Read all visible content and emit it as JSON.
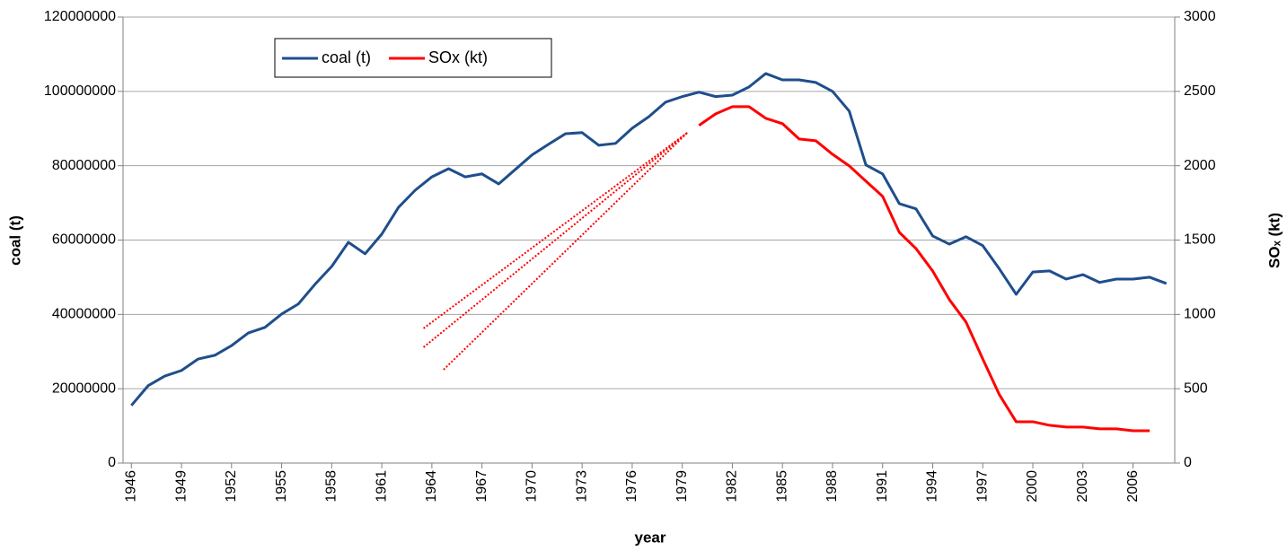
{
  "chart_data": {
    "type": "line",
    "x": [
      1946,
      1947,
      1948,
      1949,
      1950,
      1951,
      1952,
      1953,
      1954,
      1955,
      1956,
      1957,
      1958,
      1959,
      1960,
      1961,
      1962,
      1963,
      1964,
      1965,
      1966,
      1967,
      1968,
      1969,
      1970,
      1971,
      1972,
      1973,
      1974,
      1975,
      1976,
      1977,
      1978,
      1979,
      1980,
      1981,
      1982,
      1983,
      1984,
      1985,
      1986,
      1987,
      1988,
      1989,
      1990,
      1991,
      1992,
      1993,
      1994,
      1995,
      1996,
      1997,
      1998,
      1999,
      2000,
      2001,
      2002,
      2003,
      2004,
      2005,
      2006,
      2007,
      2008
    ],
    "xlim": [
      1945.5,
      2008.5
    ],
    "xticks": [
      1946,
      1949,
      1952,
      1955,
      1958,
      1961,
      1964,
      1967,
      1970,
      1973,
      1976,
      1979,
      1982,
      1985,
      1988,
      1991,
      1994,
      1997,
      2000,
      2003,
      2006
    ],
    "x_label": "year",
    "y_label": "coal (t)",
    "y2_label": "SOₓ (kt)",
    "ylim": [
      0,
      120000000
    ],
    "yticks": [
      0,
      20000000,
      40000000,
      60000000,
      80000000,
      100000000,
      120000000
    ],
    "y2lim": [
      0,
      3000
    ],
    "y2ticks": [
      0,
      500,
      1000,
      1500,
      2000,
      2500,
      3000
    ],
    "grid": true,
    "legend": "top-left",
    "series": [
      {
        "name": "coal (t)",
        "color": "#1f4e8c",
        "values": [
          15500000,
          20800000,
          23400000,
          24900000,
          28000000,
          29000000,
          31600000,
          35000000,
          36500000,
          40100000,
          42800000,
          48100000,
          52900000,
          59400000,
          56300000,
          61600000,
          68800000,
          73400000,
          77000000,
          79200000,
          77000000,
          77800000,
          75100000,
          79000000,
          82900000,
          85800000,
          88600000,
          88900000,
          85500000,
          86000000,
          90100000,
          93200000,
          97100000,
          98600000,
          99800000,
          98600000,
          99000000,
          101200000,
          104800000,
          103100000,
          103100000,
          102400000,
          100000000,
          94700000,
          80200000,
          77800000,
          69800000,
          68400000,
          61100000,
          58900000,
          60900000,
          58500000,
          52200000,
          45400000,
          51400000,
          51700000,
          49500000,
          50700000,
          48600000,
          49500000,
          49500000,
          50000000,
          48300000
        ]
      },
      {
        "name": "SOx (kt)",
        "color": "#ff0000",
        "axis": "y2",
        "values": [
          null,
          null,
          null,
          null,
          null,
          null,
          null,
          null,
          null,
          null,
          null,
          null,
          null,
          null,
          null,
          null,
          null,
          null,
          null,
          null,
          null,
          null,
          null,
          null,
          null,
          null,
          null,
          null,
          null,
          null,
          null,
          null,
          null,
          null,
          2271,
          2349,
          2397,
          2397,
          2319,
          2283,
          2180,
          2168,
          2077,
          1999,
          1896,
          1794,
          1552,
          1443,
          1292,
          1099,
          948,
          700,
          459,
          278,
          278,
          254,
          242,
          242,
          230,
          230,
          217,
          217,
          null
        ]
      }
    ],
    "trend_lines": [
      {
        "color": "#ff0000",
        "axis": "y2",
        "x": [
          1963.5,
          1979.3
        ],
        "values": [
          906,
          2222
        ]
      },
      {
        "color": "#ff0000",
        "axis": "y2",
        "x": [
          1963.5,
          1979.3
        ],
        "values": [
          779,
          2222
        ]
      },
      {
        "color": "#ff0000",
        "axis": "y2",
        "x": [
          1964.7,
          1979.3
        ],
        "values": [
          628,
          2222
        ]
      }
    ]
  }
}
